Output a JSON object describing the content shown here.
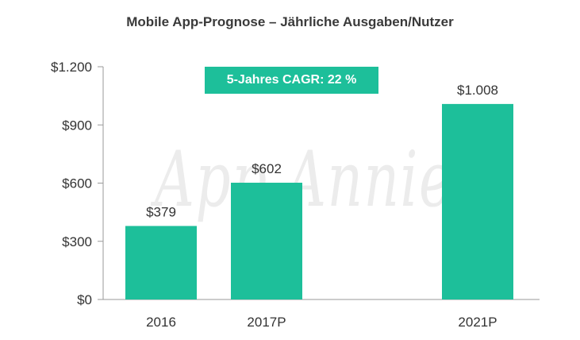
{
  "chart_data": {
    "type": "bar",
    "title": "Mobile App-Prognose – Jährliche Ausgaben/Nutzer",
    "categories": [
      "2016",
      "2017P",
      "2021P"
    ],
    "values": [
      379,
      602,
      1008
    ],
    "value_labels": [
      "$379",
      "$602",
      "$1.008"
    ],
    "ylim": [
      0,
      1200
    ],
    "yticks": [
      0,
      300,
      600,
      900,
      1200
    ],
    "ytick_labels": [
      "$0",
      "$300",
      "$600",
      "$900",
      "$1.200"
    ],
    "xlabel": "",
    "ylabel": "",
    "grid": false,
    "annotation": "5-Jahres CAGR: 22 %",
    "watermark": "App Annie",
    "colors": {
      "bar": "#1dbf9a",
      "badge": "#1dbf9a",
      "axis": "#999999"
    }
  }
}
